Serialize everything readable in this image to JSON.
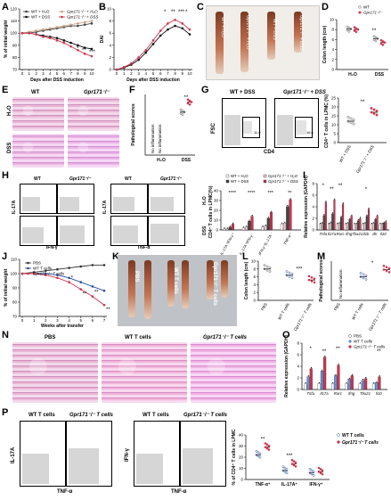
{
  "panels": {
    "A": {
      "label": "A"
    },
    "B": {
      "label": "B"
    },
    "C": {
      "label": "C"
    },
    "D": {
      "label": "D"
    },
    "E": {
      "label": "E"
    },
    "F": {
      "label": "F"
    },
    "G": {
      "label": "G"
    },
    "H": {
      "label": "H"
    },
    "I": {
      "label": "I"
    },
    "J": {
      "label": "J"
    },
    "K": {
      "label": "K"
    },
    "L": {
      "label": "L"
    },
    "M": {
      "label": "M"
    },
    "N": {
      "label": "N"
    },
    "O": {
      "label": "O"
    },
    "P": {
      "label": "P"
    }
  },
  "text": {
    "wt_h2o": "WT + H₂O",
    "gpr_h2o": "Gpr171⁻/⁻ + H₂O",
    "wt_dss": "WT + DSS",
    "gpr_dss": "Gpr171⁻/⁻ + DSS",
    "wt": "WT",
    "gpr": "Gpr171⁻/⁻",
    "h2o": "H₂O",
    "dss": "DSS",
    "pbs": "PBS",
    "wt_tcells": "WT T cells",
    "gpr_tcells": "Gpr171⁻/⁻ T cells",
    "sig1": "*",
    "sig2": "**",
    "sig3": "***",
    "sig4": "****",
    "fsc": "FSC",
    "cd4": "CD4",
    "il17a": "IL-17A",
    "ifng": "IFN-γ",
    "tnfa": "TNF-α",
    "g_val1": "11.0",
    "g_val2": "16.6"
  },
  "chart_data": [
    {
      "id": "A",
      "type": "line",
      "xlabel": "Days after DSS induction",
      "ylabel": "% of initial weight",
      "x": [
        0,
        1,
        2,
        3,
        4,
        5,
        6,
        7,
        8,
        9,
        10
      ],
      "xticks": [
        "0",
        "1",
        "2",
        "3",
        "4",
        "5",
        "6",
        "7",
        "8",
        "9",
        "10"
      ],
      "ylim": [
        70,
        120
      ],
      "yticks": [
        "70",
        "80",
        "90",
        "100",
        "110",
        "120"
      ],
      "series": [
        {
          "name": "WT + H₂O",
          "color": "#444444",
          "values": [
            100,
            100,
            101,
            102,
            103,
            104,
            105,
            106,
            106,
            107,
            108
          ]
        },
        {
          "name": "Gpr171⁻/⁻ + H₂O",
          "color": "#c9a48a",
          "values": [
            100,
            101,
            102,
            103,
            104,
            105,
            106,
            107,
            108,
            109,
            110
          ]
        },
        {
          "name": "WT + DSS",
          "color": "#111111",
          "values": [
            100,
            100,
            99,
            98,
            97,
            96,
            94,
            92,
            90,
            88,
            87
          ]
        },
        {
          "name": "Gpr171⁻/⁻ + DSS",
          "color": "#d0344f",
          "values": [
            100,
            100,
            99,
            97,
            96,
            94,
            92,
            89,
            86,
            83,
            81
          ]
        }
      ],
      "annotations": [
        "*",
        "**",
        "***"
      ]
    },
    {
      "id": "B",
      "type": "line",
      "xlabel": "Days after DSS induction",
      "ylabel": "DAI",
      "x": [
        0,
        1,
        2,
        3,
        4,
        5,
        6,
        7,
        8,
        9,
        10
      ],
      "xticks": [
        "0",
        "1",
        "2",
        "3",
        "4",
        "5",
        "6",
        "7",
        "8",
        "9",
        "10"
      ],
      "ylim": [
        0,
        10
      ],
      "yticks": [
        "0",
        "2",
        "4",
        "6",
        "8",
        "10"
      ],
      "series": [
        {
          "name": "WT + DSS",
          "color": "#111111",
          "values": [
            0,
            0.3,
            0.8,
            1.6,
            2.8,
            4.2,
            5.6,
            6.6,
            7.2,
            6.8,
            5.8
          ]
        },
        {
          "name": "Gpr171⁻/⁻ + DSS",
          "color": "#d0344f",
          "values": [
            0,
            0.4,
            1.0,
            2.0,
            3.2,
            4.8,
            6.4,
            7.6,
            8.2,
            7.6,
            6.6
          ]
        }
      ],
      "annotations": [
        "*",
        "**",
        "***",
        "*"
      ]
    },
    {
      "id": "D",
      "type": "scatter",
      "ylabel": "Colon length (cm)",
      "categories": [
        "H₂O",
        "DSS"
      ],
      "ylim": [
        0,
        10
      ],
      "yticks": [
        "0",
        "2",
        "4",
        "6",
        "8",
        "10"
      ],
      "series": [
        {
          "name": "WT",
          "values": [
            8.1,
            6.2
          ]
        },
        {
          "name": "Gpr171⁻/⁻",
          "values": [
            8.0,
            5.4
          ]
        }
      ],
      "annotations": [
        "**"
      ]
    },
    {
      "id": "F",
      "type": "scatter",
      "ylabel": "Pathological scores",
      "categories": [
        "H₂O",
        "DSS"
      ],
      "ylim": [
        0,
        12
      ],
      "annotations": [
        "No inflammation",
        "No inflammation",
        "**"
      ],
      "series": [
        {
          "name": "WT",
          "values": [
            0,
            8.5
          ]
        },
        {
          "name": "Gpr171⁻/⁻",
          "values": [
            0,
            10.5
          ]
        }
      ]
    },
    {
      "id": "G",
      "type": "scatter",
      "ylabel": "CD4⁺ T cells in LPMC (%)",
      "categories": [
        "WT + DSS",
        "Gpr171⁻/⁻ + DSS"
      ],
      "ylim": [
        0,
        25
      ],
      "yticks": [
        "0",
        "5",
        "10",
        "15",
        "20",
        "25"
      ],
      "values": [
        12,
        17
      ],
      "annotations": [
        "**"
      ]
    },
    {
      "id": "H",
      "type": "bar",
      "ylabel": "CD4⁺ T cells in LPMC(%)",
      "categories": [
        "IL-17A⁺IFN-γ⁺",
        "IL-17A⁺IFN-γ⁻",
        "IFN-γ⁺IL-17A⁻",
        "TNF-α⁺"
      ],
      "ylim": [
        0,
        40
      ],
      "yticks": [
        "0",
        "10",
        "20",
        "30",
        "40"
      ],
      "series": [
        {
          "name": "WT + H₂O",
          "values": [
            1,
            2,
            3,
            6
          ]
        },
        {
          "name": "Gpr171⁻/⁻ + H₂O",
          "values": [
            1,
            3,
            4,
            7
          ]
        },
        {
          "name": "WT + DSS",
          "values": [
            3,
            9,
            12,
            24
          ]
        },
        {
          "name": "Gpr171⁻/⁻ + DSS",
          "values": [
            6,
            14,
            18,
            31
          ]
        }
      ],
      "annotations": [
        "****",
        "****",
        "***",
        "**"
      ]
    },
    {
      "id": "I",
      "type": "bar",
      "ylabel": "Relative expression (GAPDH)",
      "categories": [
        "Tnfa",
        "Il17a",
        "Rorc",
        "Ifng",
        "Tbx21",
        "Il1b",
        "Il6",
        "Il10"
      ],
      "ylim": [
        0,
        8
      ],
      "yticks": [
        "0",
        "2",
        "4",
        "6",
        "8"
      ],
      "series": [
        {
          "name": "WT + H₂O",
          "values": [
            1,
            1,
            1,
            1,
            1,
            1,
            1,
            1
          ]
        },
        {
          "name": "Gpr171⁻/⁻ + H₂O",
          "values": [
            1.1,
            1.2,
            1.1,
            1.1,
            1.0,
            1.1,
            1.1,
            1.0
          ]
        },
        {
          "name": "WT + DSS",
          "values": [
            2.5,
            2.8,
            2.2,
            1.8,
            1.6,
            2.4,
            1.8,
            1.2
          ]
        },
        {
          "name": "Gpr171⁻/⁻ + DSS",
          "values": [
            4.8,
            5.2,
            4.5,
            2.4,
            2.0,
            3.6,
            2.4,
            1.4
          ]
        }
      ],
      "annotations": [
        "*",
        "**",
        "**",
        "*"
      ]
    },
    {
      "id": "J",
      "type": "line",
      "xlabel": "Weeks after transfer",
      "ylabel": "% of initial weight",
      "x": [
        0,
        1,
        2,
        3,
        4,
        5,
        6,
        7
      ],
      "xticks": [
        "0",
        "1",
        "2",
        "3",
        "4",
        "5",
        "6",
        "7"
      ],
      "ylim": [
        70,
        110
      ],
      "yticks": [
        "70",
        "80",
        "90",
        "100",
        "110"
      ],
      "series": [
        {
          "name": "PBS",
          "color": "#333333",
          "values": [
            100,
            101,
            102,
            103,
            104,
            105,
            106,
            106
          ]
        },
        {
          "name": "WT T cells",
          "color": "#2b4c9b",
          "values": [
            100,
            100,
            100,
            99,
            97,
            94,
            91,
            88
          ]
        },
        {
          "name": "Gpr171⁻/⁻ T cells",
          "color": "#d0344f",
          "values": [
            100,
            100,
            99,
            97,
            94,
            89,
            84,
            78
          ]
        }
      ],
      "annotations": [
        "*",
        "**",
        "**",
        "**"
      ]
    },
    {
      "id": "L",
      "type": "scatter",
      "ylabel": "Colon length (cm)",
      "categories": [
        "PBS",
        "WT T cells",
        "Gpr171⁻/⁻ T cells"
      ],
      "ylim": [
        0,
        10
      ],
      "yticks": [
        "0",
        "2",
        "4",
        "6",
        "8",
        "10"
      ],
      "values": [
        8.0,
        6.4,
        5.2
      ],
      "annotations": [
        "***"
      ]
    },
    {
      "id": "M",
      "type": "scatter",
      "ylabel": "Pathological scores",
      "categories": [
        "PBS",
        "WT T cells",
        "Gpr171⁻/⁻ T cells"
      ],
      "values": [
        0,
        7.2,
        9.4
      ],
      "annotations": [
        "No inflammation",
        "*"
      ]
    },
    {
      "id": "O",
      "type": "bar",
      "ylabel": "Relative expression (GAPDH)",
      "categories": [
        "Tnfa",
        "Il17a",
        "Rorc",
        "Ifng",
        "Tbx21",
        "Il10"
      ],
      "ylim": [
        0,
        8
      ],
      "yticks": [
        "0",
        "2",
        "4",
        "6",
        "8"
      ],
      "series": [
        {
          "name": "PBS",
          "values": [
            1,
            1,
            1,
            1,
            1,
            1
          ]
        },
        {
          "name": "WT T cells",
          "values": [
            2.2,
            3.2,
            2.4,
            1.8,
            1.6,
            1.2
          ]
        },
        {
          "name": "Gpr171⁻/⁻ T cells",
          "values": [
            3.6,
            5.6,
            4.2,
            2.4,
            1.9,
            2.2
          ]
        }
      ],
      "annotations": [
        "*",
        "**",
        "**",
        "**"
      ]
    },
    {
      "id": "P",
      "type": "scatter",
      "ylabel": "% of CD4⁺ T cells in LPMC",
      "categories": [
        "TNF-α⁺",
        "IL-17A⁺",
        "IFN-γ⁺"
      ],
      "ylim": [
        0,
        40
      ],
      "yticks": [
        "0",
        "10",
        "20",
        "30",
        "40"
      ],
      "series": [
        {
          "name": "WT T cells",
          "values": [
            22,
            8,
            6
          ]
        },
        {
          "name": "Gpr171⁻/⁻ T cells",
          "values": [
            29,
            14,
            7
          ]
        }
      ],
      "annotations": [
        "**",
        "***"
      ]
    }
  ]
}
